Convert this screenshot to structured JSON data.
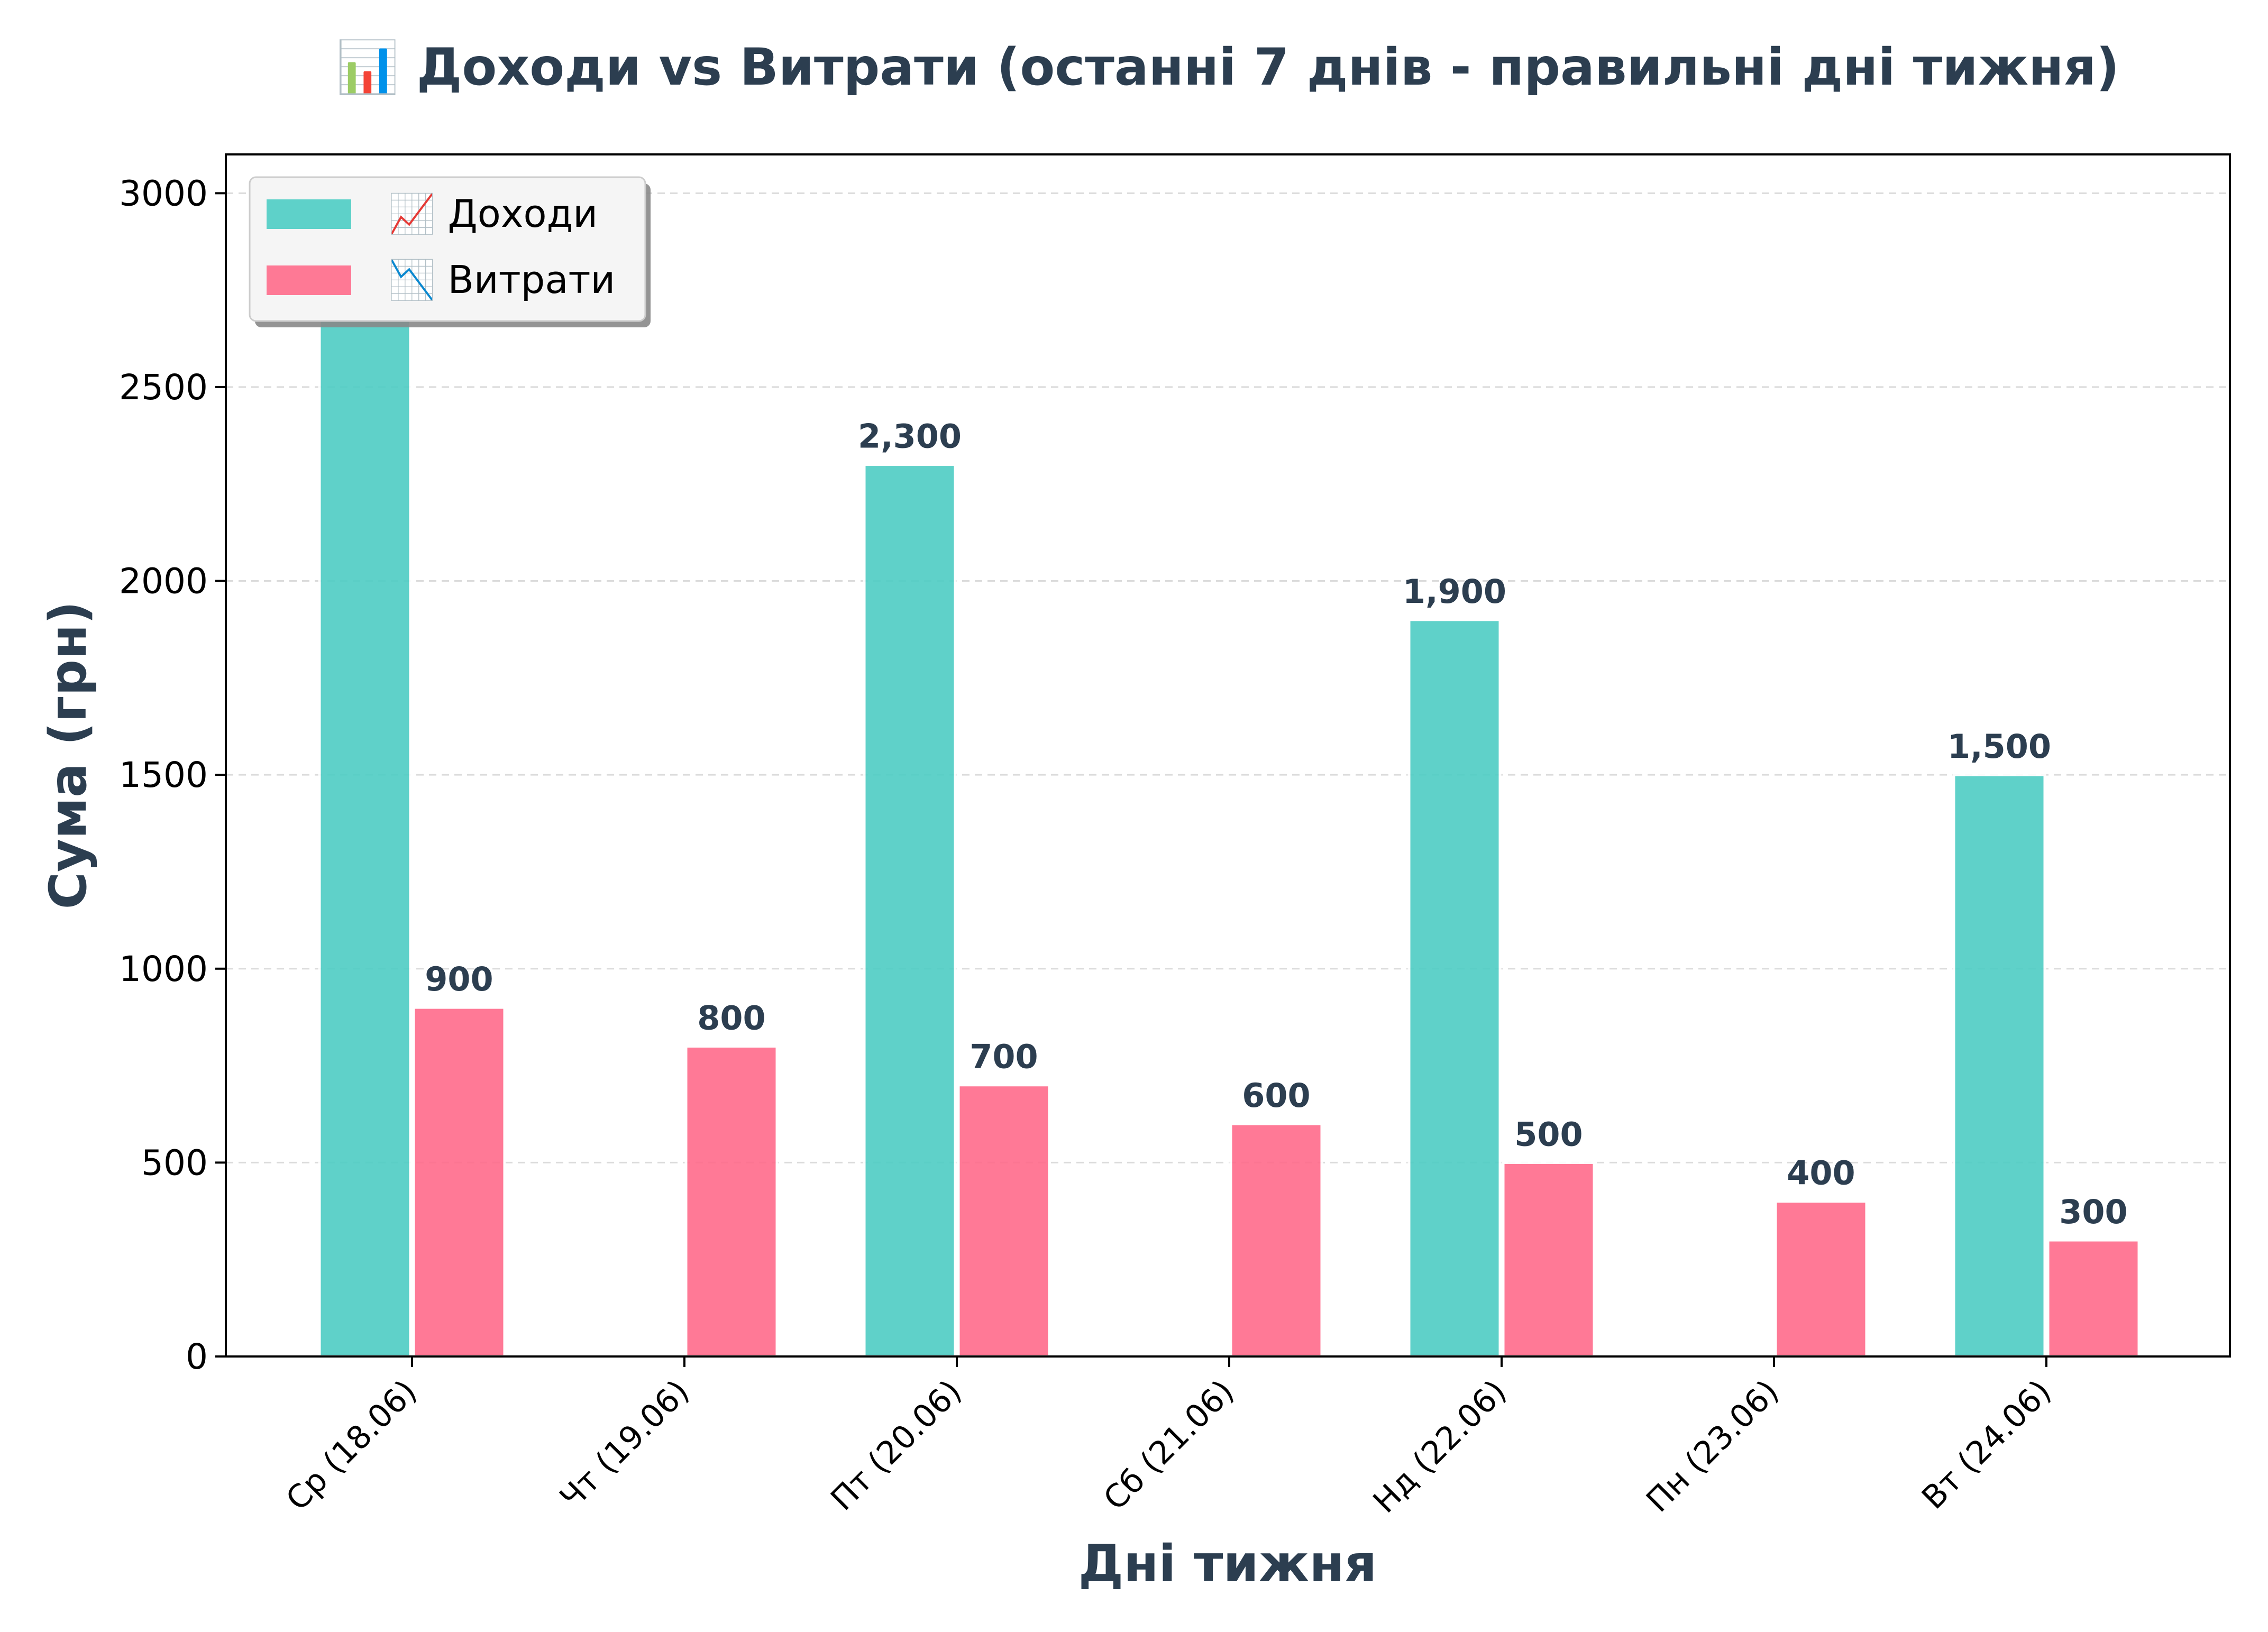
{
  "chart_data": {
    "type": "bar",
    "title": "📊 Доходи vs Витрати (останні 7 днів - правильні дні тижня)",
    "xlabel": "Дні тижня",
    "ylabel": "Сума (грн)",
    "categories": [
      "Ср (18.06)",
      "Чт (19.06)",
      "Пт (20.06)",
      "Сб (21.06)",
      "Нд (22.06)",
      "Пн (23.06)",
      "Вт (24.06)"
    ],
    "series": [
      {
        "name": "📈 Доходи",
        "color": "#4ecdc4",
        "values": [
          2700,
          0,
          2300,
          0,
          1900,
          0,
          1500
        ],
        "labels": [
          "2,700",
          "",
          "2,300",
          "",
          "1,900",
          "",
          "1,500"
        ]
      },
      {
        "name": "📉 Витрати",
        "color": "#ff6b8b",
        "values": [
          900,
          800,
          700,
          600,
          500,
          400,
          300
        ],
        "labels": [
          "900",
          "800",
          "700",
          "600",
          "500",
          "400",
          "300"
        ]
      }
    ],
    "ylim": [
      0,
      3100
    ],
    "yticks": [
      0,
      500,
      1000,
      1500,
      2000,
      2500,
      3000
    ],
    "grid": true,
    "legend_position": "top-left"
  }
}
